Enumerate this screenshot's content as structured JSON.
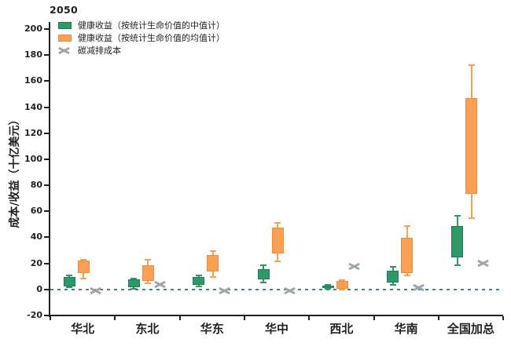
{
  "chart_data": {
    "type": "boxplot",
    "title": "2050",
    "ylabel": "成本/收益（十亿美元）",
    "ylim": [
      -20,
      200
    ],
    "ytick_step": 20,
    "grid": false,
    "legend_position": "top-left-inside",
    "zero_line": {
      "show": true,
      "style": "dashed",
      "color": "#467D8C"
    },
    "axis_color": "#231F20",
    "categories": [
      "华北",
      "东北",
      "华东",
      "华中",
      "西北",
      "华南",
      "全国加总"
    ],
    "series": [
      {
        "name": "健康收益（按统计生命价值的中值计）",
        "key": "health-benefit-median-vsl",
        "type": "box",
        "color": "#2F9869",
        "border_color": "#1E7D52",
        "boxes": [
          {
            "low": 1.5,
            "q1": 2.5,
            "q3": 9.5,
            "high": 10.5
          },
          {
            "low": 0.5,
            "q1": 1.5,
            "q3": 7.5,
            "high": 8.5
          },
          {
            "low": 2.5,
            "q1": 3.5,
            "q3": 9.5,
            "high": 10.5
          },
          {
            "low": 5.5,
            "q1": 7.5,
            "q3": 15.5,
            "high": 18.5
          },
          {
            "low": 0.5,
            "q1": 1.0,
            "q3": 3.0,
            "high": 3.5
          },
          {
            "low": 3.5,
            "q1": 5.5,
            "q3": 14.5,
            "high": 17.5
          },
          {
            "low": 18.5,
            "q1": 24.5,
            "q3": 49.0,
            "high": 56.5
          }
        ]
      },
      {
        "name": "健康收益（按统计生命价值的均值计）",
        "key": "health-benefit-mean-vsl",
        "type": "box",
        "color": "#F9A055",
        "border_color": "#F48936",
        "boxes": [
          {
            "low": 8.5,
            "q1": 12.5,
            "q3": 22.0,
            "high": 23.0
          },
          {
            "low": 4.5,
            "q1": 6.5,
            "q3": 18.5,
            "high": 22.5
          },
          {
            "low": 9.5,
            "q1": 13.5,
            "q3": 26.5,
            "high": 29.5
          },
          {
            "low": 21.5,
            "q1": 27.5,
            "q3": 47.5,
            "high": 51.0
          },
          {
            "low": 0.0,
            "q1": 0.5,
            "q3": 6.5,
            "high": 7.0
          },
          {
            "low": 10.5,
            "q1": 12.5,
            "q3": 39.5,
            "high": 48.5
          },
          {
            "low": 55.0,
            "q1": 73.5,
            "q3": 147.0,
            "high": 172.0
          }
        ]
      },
      {
        "name": "碳减排成本",
        "key": "carbon-abatement-cost",
        "type": "x-marker",
        "color": "#9EA7AD",
        "values": [
          -1,
          4,
          -1,
          -1,
          17.5,
          1.5,
          20
        ]
      }
    ]
  }
}
